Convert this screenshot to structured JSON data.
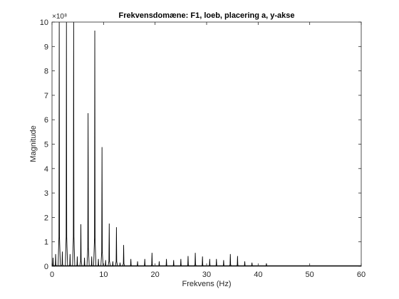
{
  "chart_data": {
    "type": "line",
    "title": "Frekvensdomæne: F1, loeb, placering a, y-akse",
    "xlabel": "Frekvens (Hz)",
    "ylabel": "Magnitude",
    "xlim": [
      0,
      60
    ],
    "ylim": [
      0,
      10
    ],
    "y_multiplier": "×10⁸",
    "x_ticks": [
      0,
      10,
      20,
      30,
      40,
      50,
      60
    ],
    "y_ticks": [
      0,
      1,
      2,
      3,
      4,
      5,
      6,
      7,
      8,
      9,
      10
    ],
    "grid": false,
    "legend": "none",
    "line_color": "#000000",
    "series": [
      {
        "peaks": [
          {
            "x": 0.2,
            "y": 0.35
          },
          {
            "x": 0.7,
            "y": 0.5
          },
          {
            "x": 1.4,
            "y": 10.0
          },
          {
            "x": 2.0,
            "y": 0.6
          },
          {
            "x": 2.8,
            "y": 10.0
          },
          {
            "x": 3.5,
            "y": 0.5
          },
          {
            "x": 4.2,
            "y": 10.0
          },
          {
            "x": 4.9,
            "y": 0.4
          },
          {
            "x": 5.6,
            "y": 1.72
          },
          {
            "x": 6.3,
            "y": 0.35
          },
          {
            "x": 7.0,
            "y": 6.27
          },
          {
            "x": 7.7,
            "y": 0.4
          },
          {
            "x": 8.3,
            "y": 9.65
          },
          {
            "x": 9.0,
            "y": 0.3
          },
          {
            "x": 9.7,
            "y": 4.88
          },
          {
            "x": 10.4,
            "y": 0.25
          },
          {
            "x": 11.1,
            "y": 1.75
          },
          {
            "x": 11.8,
            "y": 0.2
          },
          {
            "x": 12.5,
            "y": 1.6
          },
          {
            "x": 13.2,
            "y": 0.15
          },
          {
            "x": 13.9,
            "y": 0.87
          },
          {
            "x": 15.3,
            "y": 0.3
          },
          {
            "x": 16.6,
            "y": 0.2
          },
          {
            "x": 18.0,
            "y": 0.3
          },
          {
            "x": 19.4,
            "y": 0.55
          },
          {
            "x": 20.8,
            "y": 0.2
          },
          {
            "x": 22.2,
            "y": 0.3
          },
          {
            "x": 23.6,
            "y": 0.25
          },
          {
            "x": 25.0,
            "y": 0.3
          },
          {
            "x": 26.4,
            "y": 0.42
          },
          {
            "x": 27.8,
            "y": 0.55
          },
          {
            "x": 29.2,
            "y": 0.4
          },
          {
            "x": 30.6,
            "y": 0.3
          },
          {
            "x": 31.9,
            "y": 0.3
          },
          {
            "x": 33.3,
            "y": 0.25
          },
          {
            "x": 34.6,
            "y": 0.5
          },
          {
            "x": 36.0,
            "y": 0.42
          },
          {
            "x": 37.4,
            "y": 0.2
          },
          {
            "x": 38.8,
            "y": 0.15
          },
          {
            "x": 41.6,
            "y": 0.12
          }
        ]
      }
    ]
  }
}
